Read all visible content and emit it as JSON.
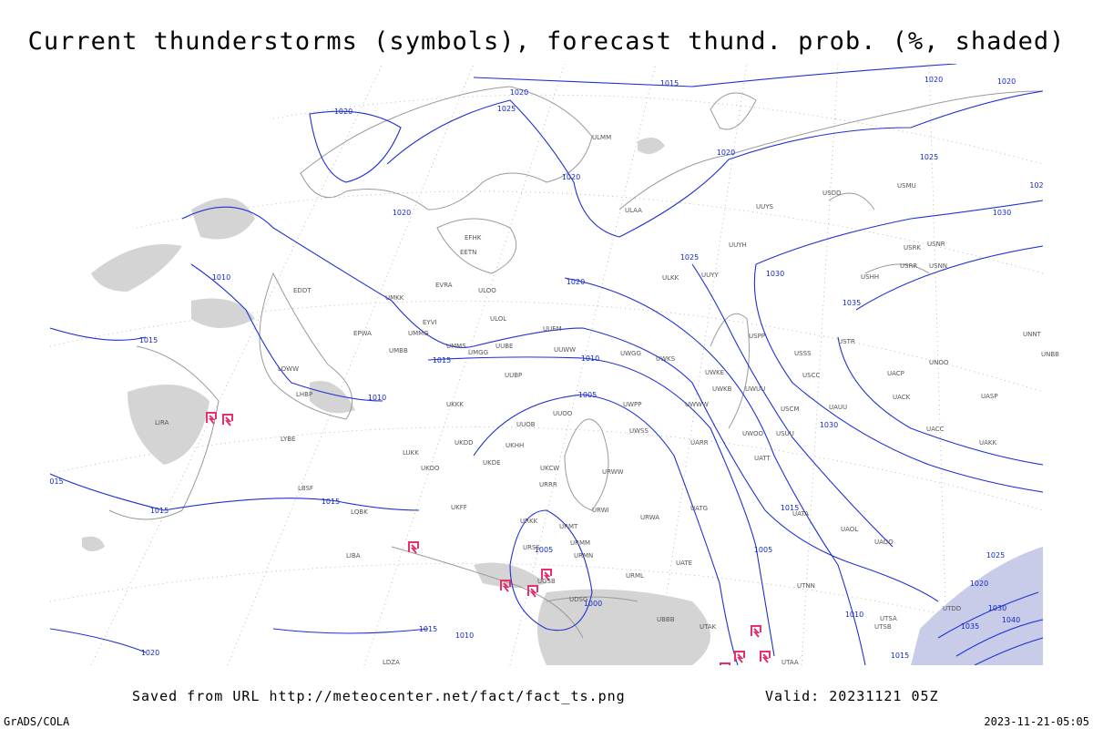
{
  "header": {
    "title": "Current thunderstorms (symbols), forecast thund. prob. (%, shaded)"
  },
  "footer": {
    "source": "Saved from URL http://meteocenter.net/fact/fact_ts.png",
    "valid": "Valid: 20231121 05Z",
    "credit": "GrADS/COLA",
    "timestamp": "2023-11-21-05:05"
  },
  "isobars": [
    1020,
    1015,
    1020,
    1020,
    1025,
    1020,
    1020,
    1020,
    1025,
    1020,
    1030,
    1025,
    1030,
    1010,
    1020,
    1035,
    1015,
    1015,
    1010,
    1010,
    1005,
    1030,
    1015,
    1015,
    1015,
    1005,
    1005,
    1025,
    1020,
    1000,
    1010,
    1030,
    1040,
    1035,
    1015,
    1010,
    1020,
    1015,
    "015",
    102
  ],
  "stations": [
    "ULMM",
    "ULAA",
    "UUYS",
    "USMU",
    "USDD",
    "EFHK",
    "EETN",
    "UUYH",
    "ULKK",
    "UUYY",
    "USRK",
    "USNR",
    "USRR",
    "USNN",
    "USHH",
    "ULOO",
    "EVRA",
    "UMKK",
    "EDDT",
    "ULOL",
    "UUEM",
    "EYVI",
    "UMMG",
    "EPWA",
    "UMBB",
    "UMMS",
    "UMGG",
    "UUBE",
    "UUWW",
    "UWGG",
    "USPP",
    "USSS",
    "USTR",
    "UNNT",
    "UNBB",
    "UWKS",
    "USCC",
    "UNOO",
    "UACP",
    "UWKE",
    "UWKB",
    "UWUU",
    "LHBP",
    "LOWW",
    "UKKK",
    "UUBP",
    "UUOO",
    "UWPP",
    "UWWW",
    "USCM",
    "UAUU",
    "UACK",
    "UASP",
    "LIRA",
    "UUOB",
    "UKHH",
    "LYBE",
    "UKDD",
    "LUKK",
    "UWSS",
    "UARR",
    "USUU",
    "UACC",
    "UAKK",
    "UWOO",
    "UATT",
    "UKOO",
    "UKDE",
    "UKFF",
    "URKK",
    "URRR",
    "UKCW",
    "URWW",
    "URWI",
    "URWA",
    "UATG",
    "UATA",
    "UAOL",
    "UAOO",
    "URMT",
    "URMM",
    "URMN",
    "URSS",
    "UGSB",
    "URML",
    "UATE",
    "UTNN",
    "UBBB",
    "UTSA",
    "UTSB",
    "UTAK",
    "UTAA",
    "LBSF",
    "LQBK",
    "LDZA",
    "LIBA",
    "UDSG",
    "UTDD"
  ]
}
